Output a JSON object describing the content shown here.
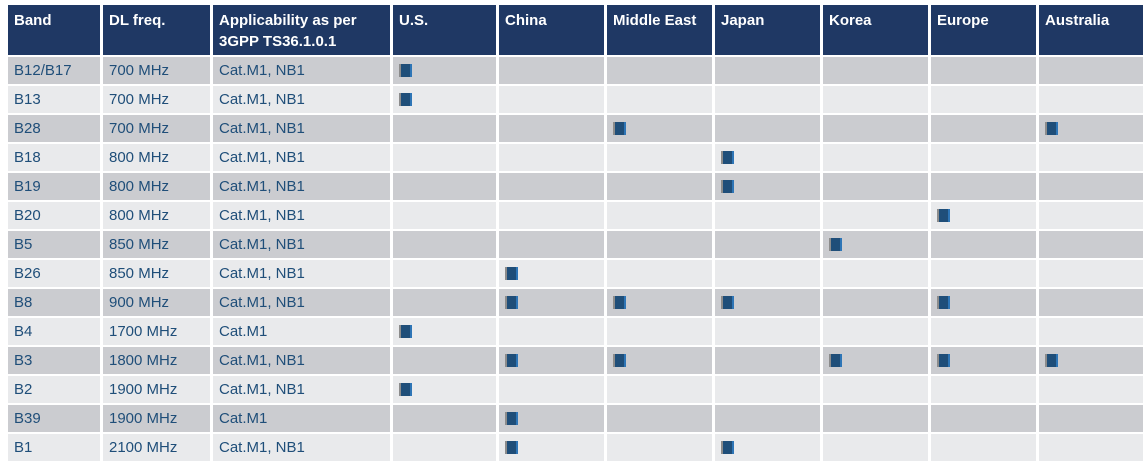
{
  "table": {
    "columns": [
      {
        "key": "band",
        "label": "Band"
      },
      {
        "key": "dl_freq",
        "label": "DL freq."
      },
      {
        "key": "applicability",
        "label": "Applicability as per 3GPP TS36.1.0.1"
      },
      {
        "key": "us",
        "label": "U.S."
      },
      {
        "key": "china",
        "label": "China"
      },
      {
        "key": "middle_east",
        "label": "Middle East"
      },
      {
        "key": "japan",
        "label": "Japan"
      },
      {
        "key": "korea",
        "label": "Korea"
      },
      {
        "key": "europe",
        "label": "Europe"
      },
      {
        "key": "australia",
        "label": "Australia"
      }
    ],
    "region_keys": [
      "us",
      "china",
      "middle_east",
      "japan",
      "korea",
      "europe",
      "australia"
    ],
    "rows": [
      {
        "band": "B12/B17",
        "dl_freq": "700 MHz",
        "applicability": "Cat.M1, NB1",
        "regions": [
          true,
          false,
          false,
          false,
          false,
          false,
          false
        ]
      },
      {
        "band": "B13",
        "dl_freq": "700 MHz",
        "applicability": "Cat.M1, NB1",
        "regions": [
          true,
          false,
          false,
          false,
          false,
          false,
          false
        ]
      },
      {
        "band": "B28",
        "dl_freq": "700 MHz",
        "applicability": "Cat.M1, NB1",
        "regions": [
          false,
          false,
          true,
          false,
          false,
          false,
          true
        ]
      },
      {
        "band": "B18",
        "dl_freq": "800 MHz",
        "applicability": "Cat.M1, NB1",
        "regions": [
          false,
          false,
          false,
          true,
          false,
          false,
          false
        ]
      },
      {
        "band": "B19",
        "dl_freq": "800 MHz",
        "applicability": "Cat.M1, NB1",
        "regions": [
          false,
          false,
          false,
          true,
          false,
          false,
          false
        ]
      },
      {
        "band": "B20",
        "dl_freq": "800 MHz",
        "applicability": "Cat.M1, NB1",
        "regions": [
          false,
          false,
          false,
          false,
          false,
          true,
          false
        ]
      },
      {
        "band": "B5",
        "dl_freq": "850 MHz",
        "applicability": "Cat.M1, NB1",
        "regions": [
          false,
          false,
          false,
          false,
          true,
          false,
          false
        ]
      },
      {
        "band": "B26",
        "dl_freq": "850 MHz",
        "applicability": "Cat.M1, NB1",
        "regions": [
          false,
          true,
          false,
          false,
          false,
          false,
          false
        ]
      },
      {
        "band": "B8",
        "dl_freq": "900 MHz",
        "applicability": "Cat.M1, NB1",
        "regions": [
          false,
          true,
          true,
          true,
          false,
          true,
          false
        ]
      },
      {
        "band": "B4",
        "dl_freq": "1700 MHz",
        "applicability": "Cat.M1",
        "regions": [
          true,
          false,
          false,
          false,
          false,
          false,
          false
        ]
      },
      {
        "band": "B3",
        "dl_freq": "1800 MHz",
        "applicability": "Cat.M1, NB1",
        "regions": [
          false,
          true,
          true,
          false,
          true,
          true,
          true
        ]
      },
      {
        "band": "B2",
        "dl_freq": "1900 MHz",
        "applicability": "Cat.M1, NB1",
        "regions": [
          true,
          false,
          false,
          false,
          false,
          false,
          false
        ]
      },
      {
        "band": "B39",
        "dl_freq": "1900 MHz",
        "applicability": "Cat.M1",
        "regions": [
          false,
          true,
          false,
          false,
          false,
          false,
          false
        ]
      },
      {
        "band": "B1",
        "dl_freq": "2100 MHz",
        "applicability": "Cat.M1, NB1",
        "regions": [
          false,
          true,
          false,
          true,
          false,
          false,
          false
        ]
      }
    ]
  },
  "colors": {
    "header_bg": "#1F3864",
    "header_text": "#FFFFFF",
    "body_text": "#1F4E79",
    "row_dark": "#CBCCD0",
    "row_light": "#E9EAEC",
    "marker_fill": "#1F4E79",
    "marker_edge_left": "#8C8C8C",
    "marker_edge_right": "#2E75B6"
  }
}
